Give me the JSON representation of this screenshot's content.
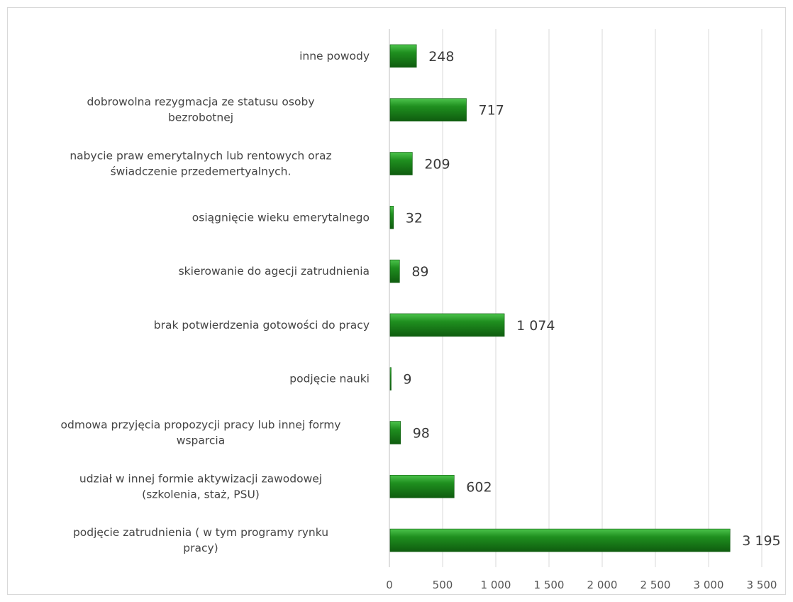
{
  "chart_data": {
    "type": "bar",
    "orientation": "horizontal",
    "categories": [
      [
        "inne powody"
      ],
      [
        "dobrowolna rezygmacja ze statusu osoby",
        "bezrobotnej"
      ],
      [
        "nabycie praw emerytalnych lub rentowych oraz",
        "świadczenie przedemertyalnych."
      ],
      [
        "osiągnięcie wieku emerytalnego"
      ],
      [
        "skierowanie do agecji zatrudnienia"
      ],
      [
        "brak potwierdzenia gotowości do pracy"
      ],
      [
        "podjęcie nauki"
      ],
      [
        "odmowa przyjęcia propozycji pracy lub innej formy",
        "wsparcia"
      ],
      [
        "udział w innej formie aktywizacji zawodowej",
        "(szkolenia, staż, PSU)"
      ],
      [
        "podjęcie zatrudnienia ( w tym programy rynku",
        "pracy)"
      ]
    ],
    "values": [
      248,
      717,
      209,
      32,
      89,
      1074,
      9,
      98,
      602,
      3195
    ],
    "value_labels": [
      "248",
      "717",
      "209",
      "32",
      "89",
      "1 074",
      "9",
      "98",
      "602",
      "3 195"
    ],
    "ticks": [
      0,
      500,
      1000,
      1500,
      2000,
      2500,
      3000,
      3500
    ],
    "tick_labels": [
      "0",
      "500",
      "1 000",
      "1 500",
      "2 000",
      "2 500",
      "3 000",
      "3 500"
    ],
    "xlim": [
      0,
      3500
    ],
    "title": "",
    "xlabel": "",
    "ylabel": "",
    "grid": true,
    "legend": "none",
    "colors": {
      "bar": "#1f8f1f",
      "bar_light": "#4cc44c",
      "bar_dark": "#0f5c0f",
      "grid": "#d9d9d9",
      "axis": "#bfbfbf"
    }
  }
}
